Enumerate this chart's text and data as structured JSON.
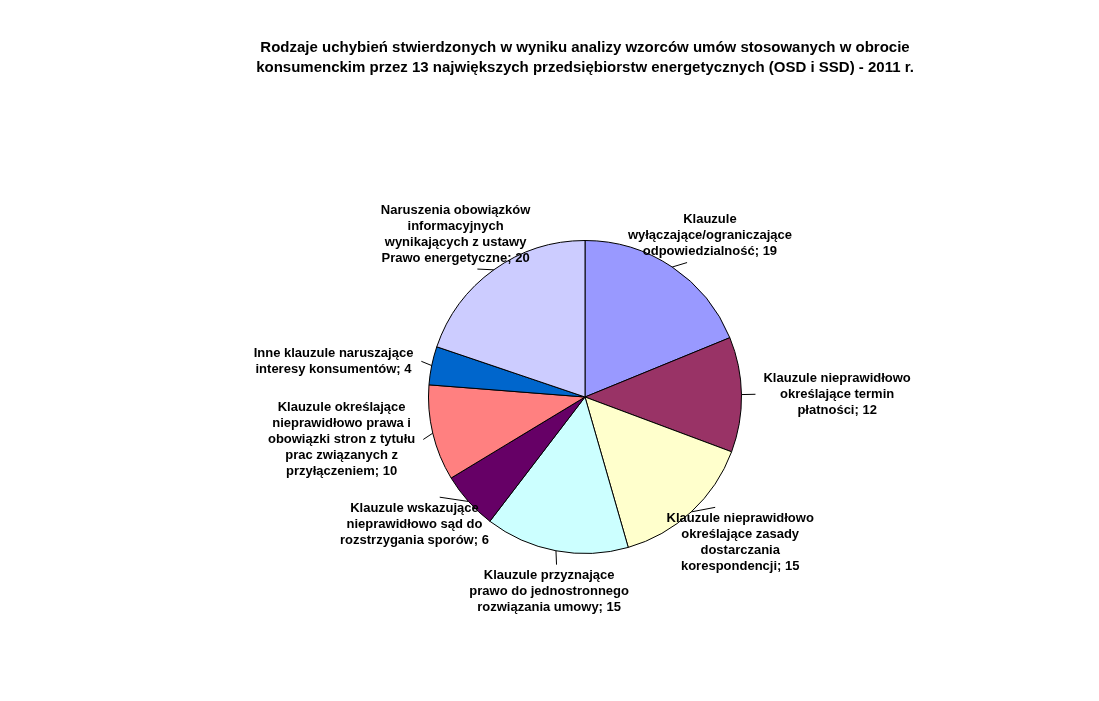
{
  "chart_data": {
    "type": "pie",
    "title": "Rodzaje uchybień stwierdzonych w wyniku analizy wzorców umów stosowanych w obrocie konsumenckim przez 13 największych przedsiębiorstw energetycznych (OSD i SSD) - 2011 r.",
    "categories": [
      "Klauzule wyłączające/ograniczające odpowiedzialność",
      "Klauzule nieprawidłowo określające termin płatności",
      "Klauzule nieprawidłowo określające zasady dostarczania korespondencji",
      "Klauzule przyznające prawo do jednostronnego rozwiązania umowy",
      "Klauzule wskazujące nieprawidłowo sąd do rozstrzygania sporów",
      "Klauzule określające nieprawidłowo prawa i obowiązki stron z tytułu prac związanych z przyłączeniem",
      "Inne klauzule naruszające interesy konsumentów",
      "Naruszenia obowiązków informacyjnych wynikających z ustawy Prawo energetyczne"
    ],
    "values": [
      19,
      12,
      15,
      15,
      6,
      10,
      4,
      20
    ],
    "colors": [
      "#9999ff",
      "#993366",
      "#ffffcc",
      "#ccffff",
      "#660066",
      "#ff8080",
      "#0066cc",
      "#ccccff"
    ],
    "value_labels": [
      "; 19",
      "; 12",
      "; 15",
      "; 15",
      "; 6",
      "; 10",
      "; 4",
      "; 20"
    ],
    "legend": false
  }
}
